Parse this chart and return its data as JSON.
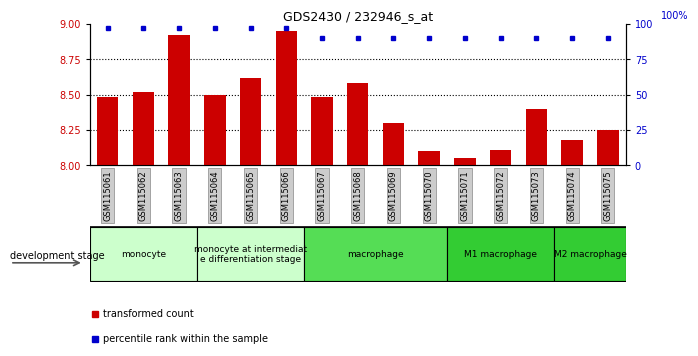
{
  "title": "GDS2430 / 232946_s_at",
  "samples": [
    "GSM115061",
    "GSM115062",
    "GSM115063",
    "GSM115064",
    "GSM115065",
    "GSM115066",
    "GSM115067",
    "GSM115068",
    "GSM115069",
    "GSM115070",
    "GSM115071",
    "GSM115072",
    "GSM115073",
    "GSM115074",
    "GSM115075"
  ],
  "bar_values": [
    8.48,
    8.52,
    8.92,
    8.5,
    8.62,
    8.95,
    8.48,
    8.58,
    8.3,
    8.1,
    8.05,
    8.11,
    8.4,
    8.18,
    8.25
  ],
  "percentile_values": [
    97,
    97,
    97,
    97,
    97,
    97,
    90,
    90,
    90,
    90,
    90,
    90,
    90,
    90,
    90
  ],
  "bar_color": "#CC0000",
  "percentile_color": "#0000CC",
  "ylim_left": [
    8.0,
    9.0
  ],
  "ylim_right": [
    0,
    100
  ],
  "yticks_left": [
    8.0,
    8.25,
    8.5,
    8.75,
    9.0
  ],
  "yticks_right": [
    0,
    25,
    50,
    75,
    100
  ],
  "grid_values": [
    8.25,
    8.5,
    8.75
  ],
  "stage_groups": [
    {
      "label": "monocyte",
      "start": 0,
      "end": 3,
      "color": "#ccffcc"
    },
    {
      "label": "monocyte at intermediat\ne differentiation stage",
      "start": 3,
      "end": 6,
      "color": "#ccffcc"
    },
    {
      "label": "macrophage",
      "start": 6,
      "end": 10,
      "color": "#55dd55"
    },
    {
      "label": "M1 macrophage",
      "start": 10,
      "end": 13,
      "color": "#33cc33"
    },
    {
      "label": "M2 macrophage",
      "start": 13,
      "end": 15,
      "color": "#33cc33"
    }
  ],
  "dev_stage_label": "development stage",
  "legend_bar_label": "transformed count",
  "legend_pct_label": "percentile rank within the sample",
  "tick_label_color_left": "#CC0000",
  "tick_label_color_right": "#0000CC",
  "bar_width": 0.6,
  "xlabel_bg_color": "#cccccc",
  "right_axis_label": "100%"
}
